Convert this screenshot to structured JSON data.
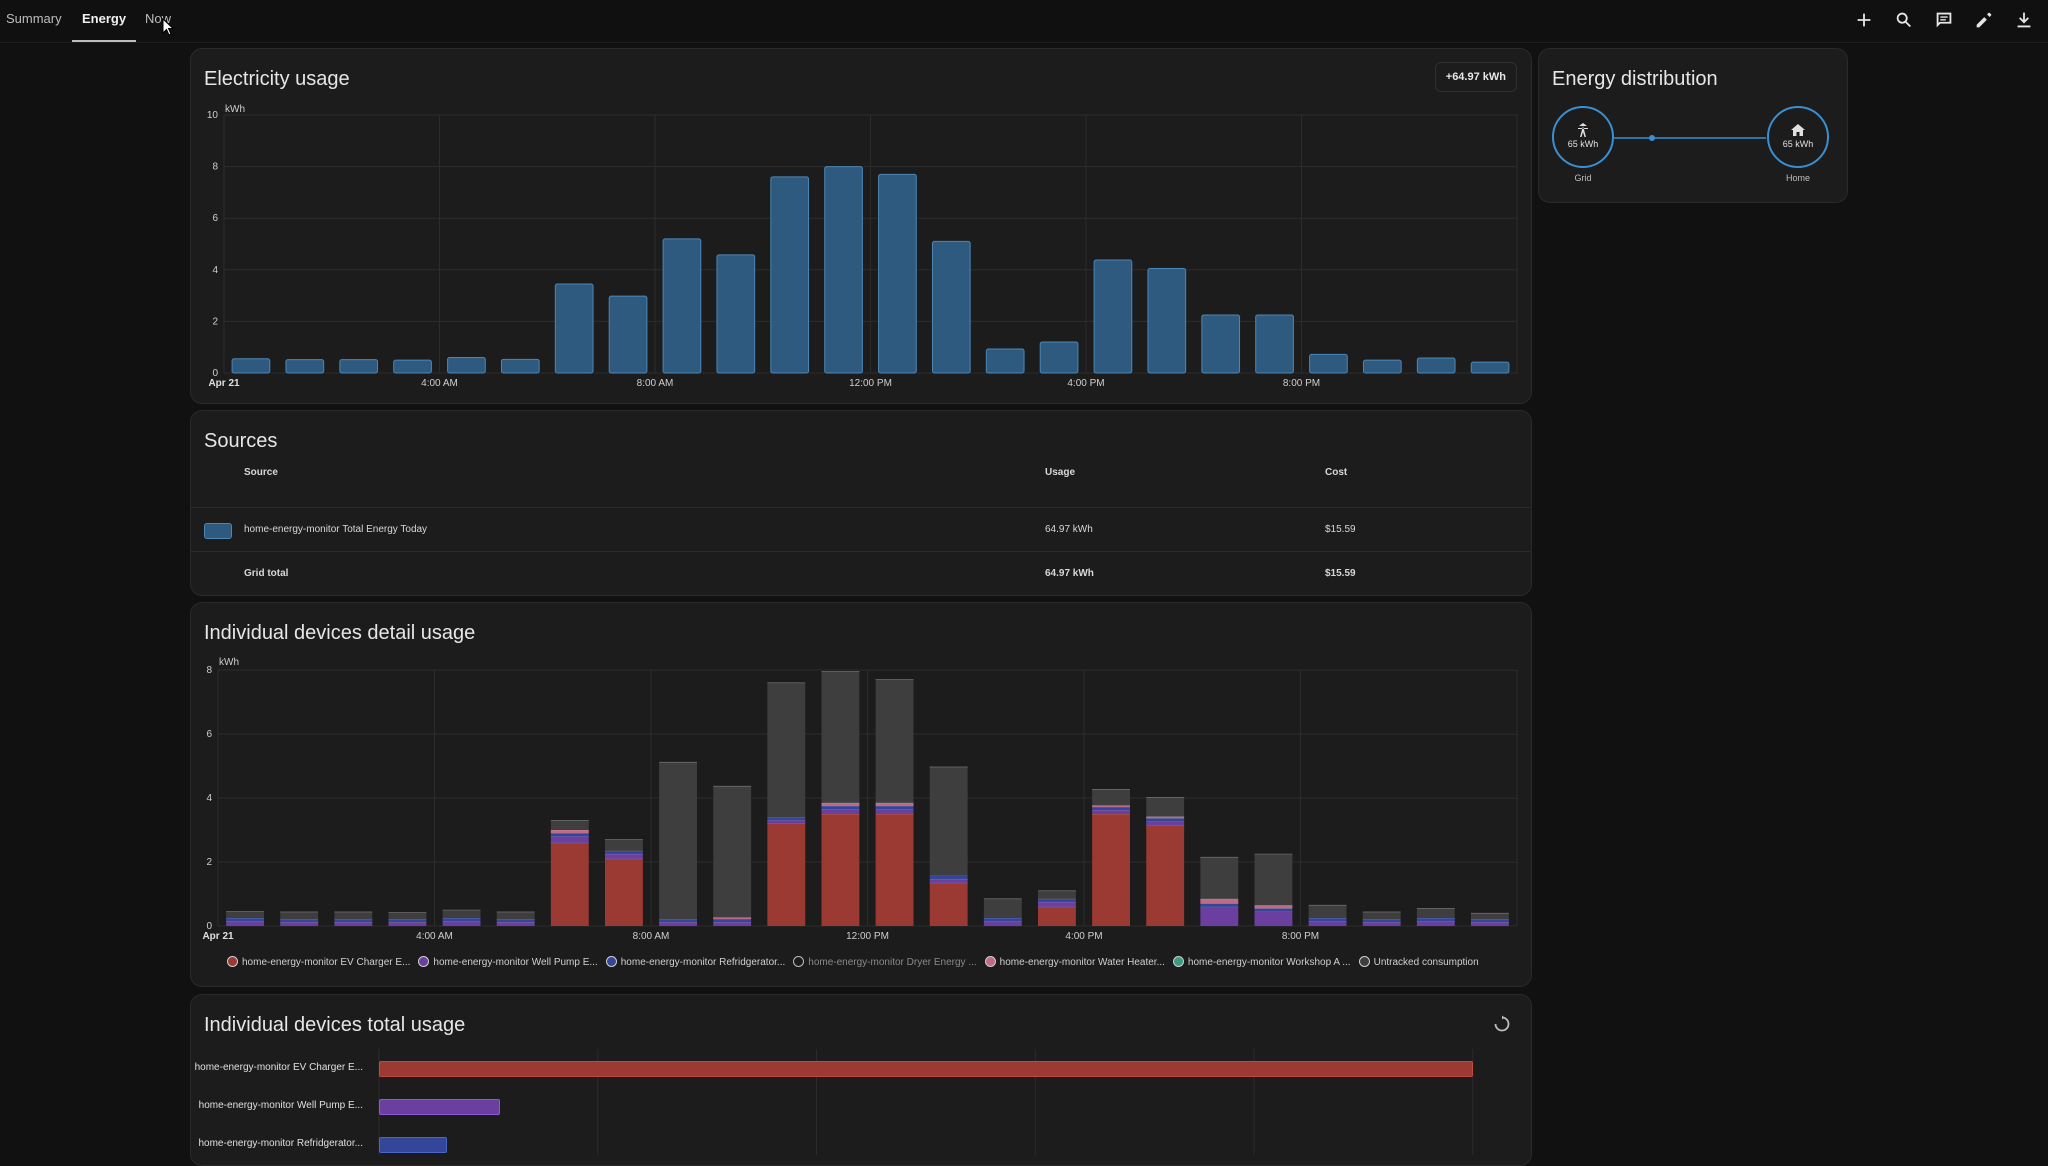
{
  "tabs": [
    "Summary",
    "Energy",
    "Now"
  ],
  "toolbar_icons": [
    "plus-icon",
    "search-icon",
    "comment-icon",
    "pencil-icon",
    "download-icon"
  ],
  "electricity": {
    "title": "Electricity usage",
    "badge": "+64.97 kWh",
    "bar_color": "#2f5a80",
    "bar_edge": "#4b86b4"
  },
  "distribution": {
    "title": "Energy distribution",
    "grid_value": "65 kWh",
    "grid_label": "Grid",
    "home_value": "65 kWh",
    "home_label": "Home",
    "accent": "#3a8fd0"
  },
  "sources": {
    "title": "Sources",
    "headers": {
      "source": "Source",
      "usage": "Usage",
      "cost": "Cost"
    },
    "rows": [
      {
        "name": "home-energy-monitor Total Energy Today",
        "usage": "64.97 kWh",
        "cost": "$15.59"
      }
    ],
    "total": {
      "name": "Grid total",
      "usage": "64.97 kWh",
      "cost": "$15.59"
    }
  },
  "devices_detail": {
    "title": "Individual devices detail usage"
  },
  "devices_total": {
    "title": "Individual devices total usage",
    "devices": [
      {
        "label": "home-energy-monitor EV Charger E...",
        "value": 26.5,
        "color": "#9b3a32"
      },
      {
        "label": "home-energy-monitor Well Pump E...",
        "value": 2.9,
        "color": "#6a3fa0"
      },
      {
        "label": "home-energy-monitor Refridgerator...",
        "value": 1.6,
        "color": "#34469a"
      }
    ]
  },
  "chart_data": [
    {
      "type": "bar",
      "title": "Electricity usage",
      "ylabel": "kWh",
      "ylim": [
        0,
        10
      ],
      "yticks": [
        0,
        2,
        4,
        6,
        8,
        10
      ],
      "xtick_labels": [
        "Apr 21",
        "4:00 AM",
        "8:00 AM",
        "12:00 PM",
        "4:00 PM",
        "8:00 PM"
      ],
      "hours": [
        0,
        1,
        2,
        3,
        4,
        5,
        6,
        7,
        8,
        9,
        10,
        11,
        12,
        13,
        14,
        15,
        16,
        17,
        18,
        19,
        20,
        21,
        22,
        23
      ],
      "values": [
        0.55,
        0.52,
        0.52,
        0.5,
        0.6,
        0.53,
        3.45,
        2.98,
        5.2,
        4.58,
        7.6,
        8.0,
        7.7,
        5.1,
        0.93,
        1.2,
        4.38,
        4.05,
        2.25,
        2.25,
        0.72,
        0.5,
        0.58,
        0.42
      ]
    },
    {
      "type": "bar",
      "title": "Individual devices detail usage",
      "stacked": true,
      "ylabel": "kWh",
      "ylim": [
        0,
        8
      ],
      "yticks": [
        0,
        2,
        4,
        6,
        8
      ],
      "xtick_labels": [
        "Apr 21",
        "4:00 AM",
        "8:00 AM",
        "12:00 PM",
        "4:00 PM",
        "8:00 PM"
      ],
      "hours": [
        0,
        1,
        2,
        3,
        4,
        5,
        6,
        7,
        8,
        9,
        10,
        11,
        12,
        13,
        14,
        15,
        16,
        17,
        18,
        19,
        20,
        21,
        22,
        23
      ],
      "legend_position": "bottom",
      "series": [
        {
          "name": "home-energy-monitor EV Charger E...",
          "color": "#9b3a32",
          "values": [
            0,
            0,
            0,
            0,
            0,
            0,
            2.6,
            2.1,
            0,
            0,
            3.2,
            3.5,
            3.5,
            1.35,
            0,
            0.6,
            3.5,
            3.15,
            0,
            0,
            0,
            0,
            0,
            0
          ]
        },
        {
          "name": "home-energy-monitor Well Pump E...",
          "color": "#6a3fa0",
          "values": [
            0.15,
            0.12,
            0.12,
            0.12,
            0.15,
            0.12,
            0.2,
            0.15,
            0.12,
            0.12,
            0.1,
            0.15,
            0.15,
            0.12,
            0.15,
            0.15,
            0.12,
            0.12,
            0.6,
            0.45,
            0.15,
            0.12,
            0.15,
            0.12
          ]
        },
        {
          "name": "home-energy-monitor Refridgerator...",
          "color": "#34469a",
          "values": [
            0.1,
            0.1,
            0.1,
            0.1,
            0.1,
            0.1,
            0.1,
            0.1,
            0.1,
            0.1,
            0.1,
            0.1,
            0.1,
            0.1,
            0.1,
            0.1,
            0.1,
            0.1,
            0.1,
            0.1,
            0.1,
            0.1,
            0.1,
            0.1
          ]
        },
        {
          "name": "home-energy-monitor Dryer Energy ...",
          "color": "#bdbdbd",
          "values": [
            0,
            0,
            0,
            0,
            0,
            0,
            0,
            0,
            0,
            0,
            0,
            0,
            0,
            0,
            0,
            0,
            0,
            0,
            0,
            0,
            0,
            0,
            0,
            0
          ]
        },
        {
          "name": "home-energy-monitor Water Heater...",
          "color": "#c06a85",
          "values": [
            0,
            0,
            0,
            0,
            0,
            0,
            0.1,
            0,
            0,
            0.05,
            0,
            0.1,
            0.1,
            0,
            0,
            0,
            0.05,
            0.05,
            0.15,
            0.1,
            0,
            0,
            0,
            0
          ]
        },
        {
          "name": "home-energy-monitor Workshop A ...",
          "color": "#3c9a80",
          "values": [
            0,
            0,
            0,
            0,
            0,
            0,
            0,
            0,
            0,
            0,
            0,
            0,
            0,
            0,
            0,
            0,
            0,
            0,
            0,
            0,
            0,
            0,
            0,
            0
          ]
        },
        {
          "name": "Untracked consumption",
          "color": "#3e3e3e",
          "values": [
            0.2,
            0.22,
            0.22,
            0.2,
            0.25,
            0.22,
            0.3,
            0.35,
            4.9,
            4.1,
            4.2,
            4.1,
            3.85,
            3.4,
            0.6,
            0.25,
            0.5,
            0.6,
            1.3,
            1.6,
            0.4,
            0.22,
            0.3,
            0.18
          ]
        }
      ]
    },
    {
      "type": "bar",
      "orientation": "horizontal",
      "title": "Individual devices total usage",
      "categories": [
        "home-energy-monitor EV Charger E...",
        "home-energy-monitor Well Pump E...",
        "home-energy-monitor Refridgerator..."
      ],
      "values": [
        26.5,
        2.9,
        1.6
      ]
    }
  ]
}
